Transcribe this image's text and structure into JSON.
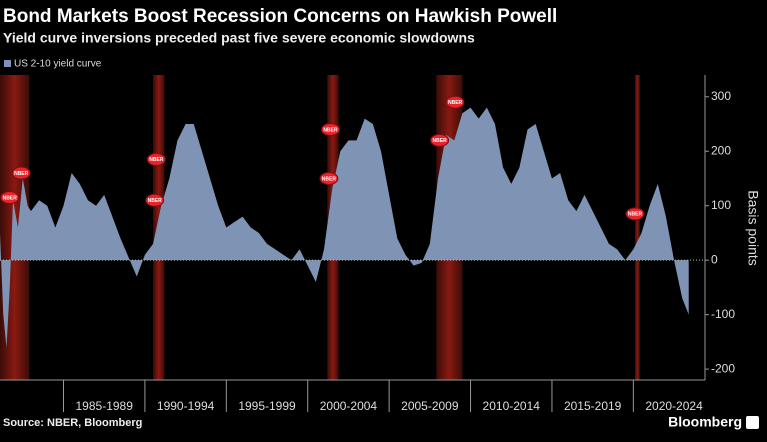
{
  "chart_data": {
    "type": "area",
    "title": "Bond Markets Boost Recession Concerns on Hawkish Powell",
    "subtitle": "Yield curve inversions preceded past five severe economic slowdowns",
    "y_label": "Basis points",
    "source": "Source: NBER, Bloomberg",
    "brand": "Bloomberg",
    "categories": [
      "1985-1989",
      "1990-1994",
      "1995-1999",
      "2000-2004",
      "2005-2009",
      "2010-2014",
      "2015-2019",
      "2020-2024"
    ],
    "xticks": [
      1985,
      1990,
      1995,
      2000,
      2005,
      2010,
      2015,
      2020
    ],
    "xlim": [
      1981.1,
      2024.4
    ],
    "ylim": [
      -220,
      340
    ],
    "yticks": [
      -200,
      -100,
      0,
      100,
      200,
      300
    ],
    "y_axis_side": "right",
    "series": [
      {
        "name": "US 2-10 yield curve",
        "color": "#7f93b4",
        "x": [
          1981.1,
          1981.3,
          1981.5,
          1981.7,
          1981.9,
          1982.2,
          1982.5,
          1982.8,
          1983.0,
          1983.5,
          1984.0,
          1984.5,
          1985.0,
          1985.5,
          1986.0,
          1986.5,
          1987.0,
          1987.5,
          1988.0,
          1988.5,
          1989.0,
          1989.5,
          1990.0,
          1990.5,
          1991.0,
          1991.5,
          1992.0,
          1992.5,
          1993.0,
          1993.5,
          1994.0,
          1994.5,
          1995.0,
          1995.5,
          1996.0,
          1996.5,
          1997.0,
          1997.5,
          1998.0,
          1998.5,
          1999.0,
          1999.5,
          2000.0,
          2000.5,
          2001.0,
          2001.5,
          2002.0,
          2002.5,
          2003.0,
          2003.5,
          2004.0,
          2004.5,
          2005.0,
          2005.5,
          2006.0,
          2006.5,
          2007.0,
          2007.5,
          2008.0,
          2008.5,
          2009.0,
          2009.5,
          2010.0,
          2010.5,
          2011.0,
          2011.5,
          2012.0,
          2012.5,
          2013.0,
          2013.5,
          2014.0,
          2014.5,
          2015.0,
          2015.5,
          2016.0,
          2016.5,
          2017.0,
          2017.5,
          2018.0,
          2018.5,
          2019.0,
          2019.5,
          2020.0,
          2020.5,
          2021.0,
          2021.5,
          2022.0,
          2022.5,
          2023.0,
          2023.4
        ],
        "values": [
          50,
          -100,
          -160,
          -50,
          110,
          60,
          150,
          100,
          90,
          110,
          100,
          60,
          100,
          160,
          140,
          110,
          100,
          120,
          80,
          40,
          5,
          -30,
          10,
          30,
          100,
          150,
          220,
          250,
          250,
          200,
          150,
          100,
          60,
          70,
          80,
          60,
          50,
          30,
          20,
          10,
          0,
          20,
          -10,
          -40,
          20,
          130,
          200,
          220,
          220,
          260,
          250,
          200,
          120,
          40,
          10,
          -10,
          -5,
          30,
          150,
          230,
          220,
          270,
          280,
          260,
          280,
          250,
          170,
          140,
          170,
          240,
          250,
          200,
          150,
          160,
          110,
          90,
          120,
          90,
          60,
          30,
          20,
          0,
          20,
          50,
          100,
          140,
          80,
          0,
          -70,
          -100
        ]
      }
    ],
    "recessions": [
      [
        1981.1,
        1982.9
      ],
      [
        1990.5,
        1991.2
      ],
      [
        2001.2,
        2001.9
      ],
      [
        2007.9,
        2009.5
      ],
      [
        2020.1,
        2020.4
      ]
    ],
    "annotations": [
      {
        "x": 1981.7,
        "y": 115,
        "label": "NBER"
      },
      {
        "x": 1982.4,
        "y": 160,
        "label": "NBER"
      },
      {
        "x": 1990.6,
        "y": 110,
        "label": "NBER"
      },
      {
        "x": 1990.7,
        "y": 185,
        "label": "NBER"
      },
      {
        "x": 2001.3,
        "y": 150,
        "label": "NBER"
      },
      {
        "x": 2001.4,
        "y": 240,
        "label": "NBER"
      },
      {
        "x": 2008.1,
        "y": 220,
        "label": "NBER"
      },
      {
        "x": 2009.05,
        "y": 290,
        "label": "NBER"
      },
      {
        "x": 2020.1,
        "y": 85,
        "label": "NBER"
      }
    ]
  }
}
